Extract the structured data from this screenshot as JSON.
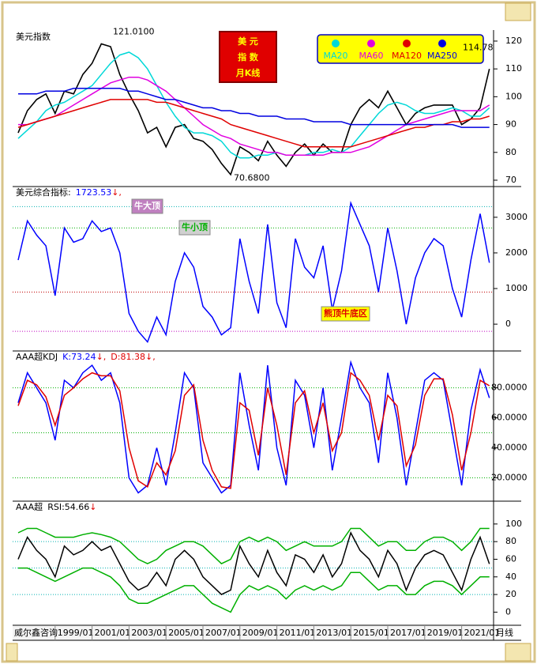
{
  "chart_data": [
    {
      "type": "line",
      "title": "美元指数",
      "badge": [
        "美 元",
        "指 数",
        "月K线"
      ],
      "ylim": [
        68,
        123.4
      ],
      "yticks": [
        70,
        80,
        90,
        100,
        110,
        120
      ],
      "annotations": [
        {
          "label": "121.0100",
          "value": 121.01
        },
        {
          "label": "70.6800",
          "value": 70.68
        },
        {
          "label": "114.78",
          "value": 114.78
        }
      ],
      "series": [
        {
          "color": "#000000",
          "values": [
            87,
            95,
            99,
            101,
            94,
            102,
            101,
            108,
            112,
            119,
            118,
            108,
            101,
            95,
            87,
            89,
            82,
            89,
            90,
            85,
            84,
            81,
            76,
            72,
            82,
            80,
            77,
            84,
            79,
            75,
            80,
            83,
            79,
            83,
            80,
            80,
            90,
            96,
            99,
            96,
            102,
            96,
            90,
            94,
            96,
            97,
            97,
            97,
            90,
            92,
            96,
            110
          ]
        },
        {
          "name": "MA20",
          "color": "#00d8d8",
          "values": [
            85,
            88,
            91,
            95,
            97,
            98,
            100,
            102,
            104,
            108,
            112,
            115,
            116,
            114,
            110,
            104,
            98,
            93,
            89,
            87,
            87,
            86,
            84,
            80,
            78,
            78,
            79,
            79,
            80,
            79,
            79,
            79,
            80,
            80,
            81,
            80,
            82,
            86,
            90,
            94,
            97,
            98,
            97,
            95,
            94,
            94,
            95,
            96,
            95,
            93,
            93,
            96
          ]
        },
        {
          "name": "MA60",
          "color": "#e000e0",
          "values": [
            90,
            90,
            91,
            92,
            93,
            95,
            97,
            99,
            101,
            103,
            105,
            106,
            107,
            107,
            106,
            104,
            102,
            99,
            96,
            93,
            90,
            88,
            86,
            85,
            83,
            82,
            81,
            80,
            80,
            79,
            79,
            79,
            79,
            79,
            80,
            80,
            80,
            81,
            82,
            84,
            86,
            88,
            90,
            91,
            92,
            93,
            94,
            95,
            95,
            95,
            95,
            97
          ]
        },
        {
          "name": "MA120",
          "color": "#e00000",
          "values": [
            89,
            90,
            91,
            92,
            93,
            94,
            95,
            96,
            97,
            98,
            99,
            99,
            99,
            99,
            99,
            98,
            98,
            97,
            96,
            95,
            94,
            93,
            92,
            90,
            89,
            88,
            87,
            86,
            85,
            84,
            83,
            82,
            82,
            82,
            82,
            82,
            82,
            83,
            84,
            85,
            86,
            87,
            88,
            89,
            89,
            90,
            90,
            91,
            91,
            92,
            92,
            93
          ]
        },
        {
          "name": "MA250",
          "color": "#0000e0",
          "values": [
            101,
            101,
            101,
            102,
            102,
            102,
            103,
            103,
            103,
            103,
            103,
            103,
            102,
            102,
            101,
            100,
            99,
            99,
            98,
            97,
            96,
            96,
            95,
            95,
            94,
            94,
            93,
            93,
            93,
            92,
            92,
            92,
            91,
            91,
            91,
            91,
            90,
            90,
            90,
            90,
            90,
            90,
            90,
            90,
            90,
            90,
            90,
            90,
            89,
            89,
            89,
            89
          ]
        }
      ]
    },
    {
      "type": "line",
      "title": "美元综合指标:",
      "trend_mark": "↓,",
      "header": [
        0
      ],
      "ylim": [
        -730,
        3840
      ],
      "yticks": [
        0,
        1000,
        2000,
        3000
      ],
      "reference_lines": [
        {
          "value": 3300,
          "color": "#00b0b0"
        },
        {
          "value": 2700,
          "color": "#00b000"
        },
        {
          "value": 900,
          "color": "#c00000"
        },
        {
          "value": -200,
          "color": "#c000c0"
        }
      ],
      "notes": [
        "牛大顶",
        "牛小顶",
        "熊顶牛底区"
      ],
      "series": [
        {
          "color": "#0000ff",
          "values": [
            1800,
            2900,
            2500,
            2200,
            800,
            2700,
            2300,
            2400,
            2900,
            2600,
            2700,
            2000,
            300,
            -200,
            -500,
            200,
            -300,
            1200,
            2000,
            1600,
            500,
            200,
            -300,
            -100,
            2400,
            1200,
            300,
            2800,
            600,
            -100,
            2400,
            1600,
            1300,
            2200,
            400,
            1500,
            3400,
            2800,
            2200,
            900,
            2700,
            1500,
            0,
            1300,
            2000,
            2400,
            2200,
            1000,
            200,
            1800,
            3100,
            1723.53
          ]
        }
      ]
    },
    {
      "type": "line",
      "title": "AAA超KDJ",
      "separator": ": ",
      "trend_mark": "↓,",
      "header": [
        0,
        1
      ],
      "ylim": [
        5,
        104
      ],
      "yticks": [
        {
          "value": 20,
          "label": "20.0000"
        },
        {
          "value": 40,
          "label": "40.0000"
        },
        {
          "value": 60,
          "label": "60.0000"
        },
        {
          "value": 80,
          "label": "80.0000"
        }
      ],
      "reference_lines": [
        {
          "value": 80,
          "color": "#00b000"
        },
        {
          "value": 50,
          "color": "#00b000"
        },
        {
          "value": 20,
          "color": "#00b000"
        }
      ],
      "series": [
        {
          "name": "K",
          "color": "#0000ff",
          "values": [
            70,
            90,
            80,
            70,
            45,
            85,
            80,
            90,
            95,
            85,
            90,
            70,
            20,
            10,
            15,
            40,
            15,
            50,
            90,
            80,
            30,
            20,
            10,
            15,
            90,
            55,
            25,
            95,
            40,
            15,
            85,
            75,
            40,
            80,
            25,
            60,
            97,
            80,
            70,
            30,
            90,
            60,
            15,
            50,
            85,
            90,
            85,
            50,
            15,
            65,
            92,
            73.24
          ]
        },
        {
          "name": "D",
          "color": "#e00000",
          "values": [
            68,
            85,
            82,
            74,
            55,
            75,
            80,
            86,
            90,
            88,
            88,
            78,
            40,
            18,
            14,
            30,
            22,
            38,
            75,
            82,
            45,
            25,
            14,
            13,
            70,
            65,
            35,
            80,
            55,
            22,
            70,
            78,
            50,
            70,
            38,
            50,
            90,
            85,
            75,
            45,
            75,
            68,
            28,
            42,
            75,
            86,
            86,
            62,
            25,
            50,
            85,
            81.38
          ]
        }
      ]
    },
    {
      "type": "line",
      "title": "AAA超",
      "separator": ": ",
      "trend_mark": "↓",
      "header": [
        0
      ],
      "ylim": [
        -14,
        125
      ],
      "yticks": [
        0,
        20,
        40,
        60,
        80,
        100
      ],
      "reference_lines": [
        {
          "value": 80,
          "color": "#00b0b0"
        },
        {
          "value": 50,
          "color": "#00b0b0"
        },
        {
          "value": 20,
          "color": "#00b0b0"
        }
      ],
      "categories": [
        null,
        null,
        null,
        null,
        "1999/01",
        null,
        null,
        null,
        "2001/01",
        null,
        null,
        null,
        "2003/01",
        null,
        null,
        null,
        "2005/01",
        null,
        null,
        null,
        "2007/01",
        null,
        null,
        null,
        "2009/01",
        null,
        null,
        null,
        "2011/01",
        null,
        null,
        null,
        "2013/01",
        null,
        null,
        null,
        "2015/01",
        null,
        null,
        null,
        "2017/01",
        null,
        null,
        null,
        "2019/01",
        null,
        null,
        null,
        "2021/01",
        null,
        null,
        null
      ],
      "source": "威尔鑫咨询",
      "period": "月线",
      "series": [
        {
          "name": "RSI",
          "color": "#000000",
          "values": [
            60,
            85,
            70,
            60,
            40,
            75,
            65,
            70,
            80,
            70,
            75,
            55,
            35,
            25,
            30,
            45,
            30,
            60,
            70,
            60,
            40,
            30,
            20,
            25,
            75,
            55,
            40,
            70,
            45,
            30,
            65,
            60,
            45,
            65,
            40,
            55,
            90,
            70,
            60,
            40,
            70,
            55,
            25,
            50,
            65,
            70,
            65,
            45,
            25,
            60,
            85,
            54.66
          ]
        },
        {
          "color": "#00b000",
          "values": [
            90,
            95,
            95,
            90,
            85,
            85,
            85,
            88,
            90,
            88,
            85,
            80,
            70,
            60,
            55,
            60,
            70,
            75,
            80,
            80,
            75,
            65,
            55,
            60,
            80,
            85,
            80,
            85,
            80,
            70,
            75,
            80,
            75,
            75,
            75,
            80,
            95,
            95,
            85,
            75,
            80,
            80,
            70,
            70,
            80,
            85,
            85,
            80,
            70,
            80,
            95,
            95
          ]
        },
        {
          "color": "#00b000",
          "values": [
            50,
            50,
            45,
            40,
            35,
            40,
            45,
            50,
            50,
            45,
            40,
            30,
            15,
            10,
            10,
            15,
            20,
            25,
            30,
            30,
            20,
            10,
            5,
            0,
            20,
            30,
            25,
            30,
            25,
            15,
            25,
            30,
            25,
            30,
            25,
            30,
            45,
            45,
            35,
            25,
            30,
            30,
            20,
            20,
            30,
            35,
            35,
            30,
            20,
            30,
            40,
            40
          ]
        }
      ]
    }
  ]
}
